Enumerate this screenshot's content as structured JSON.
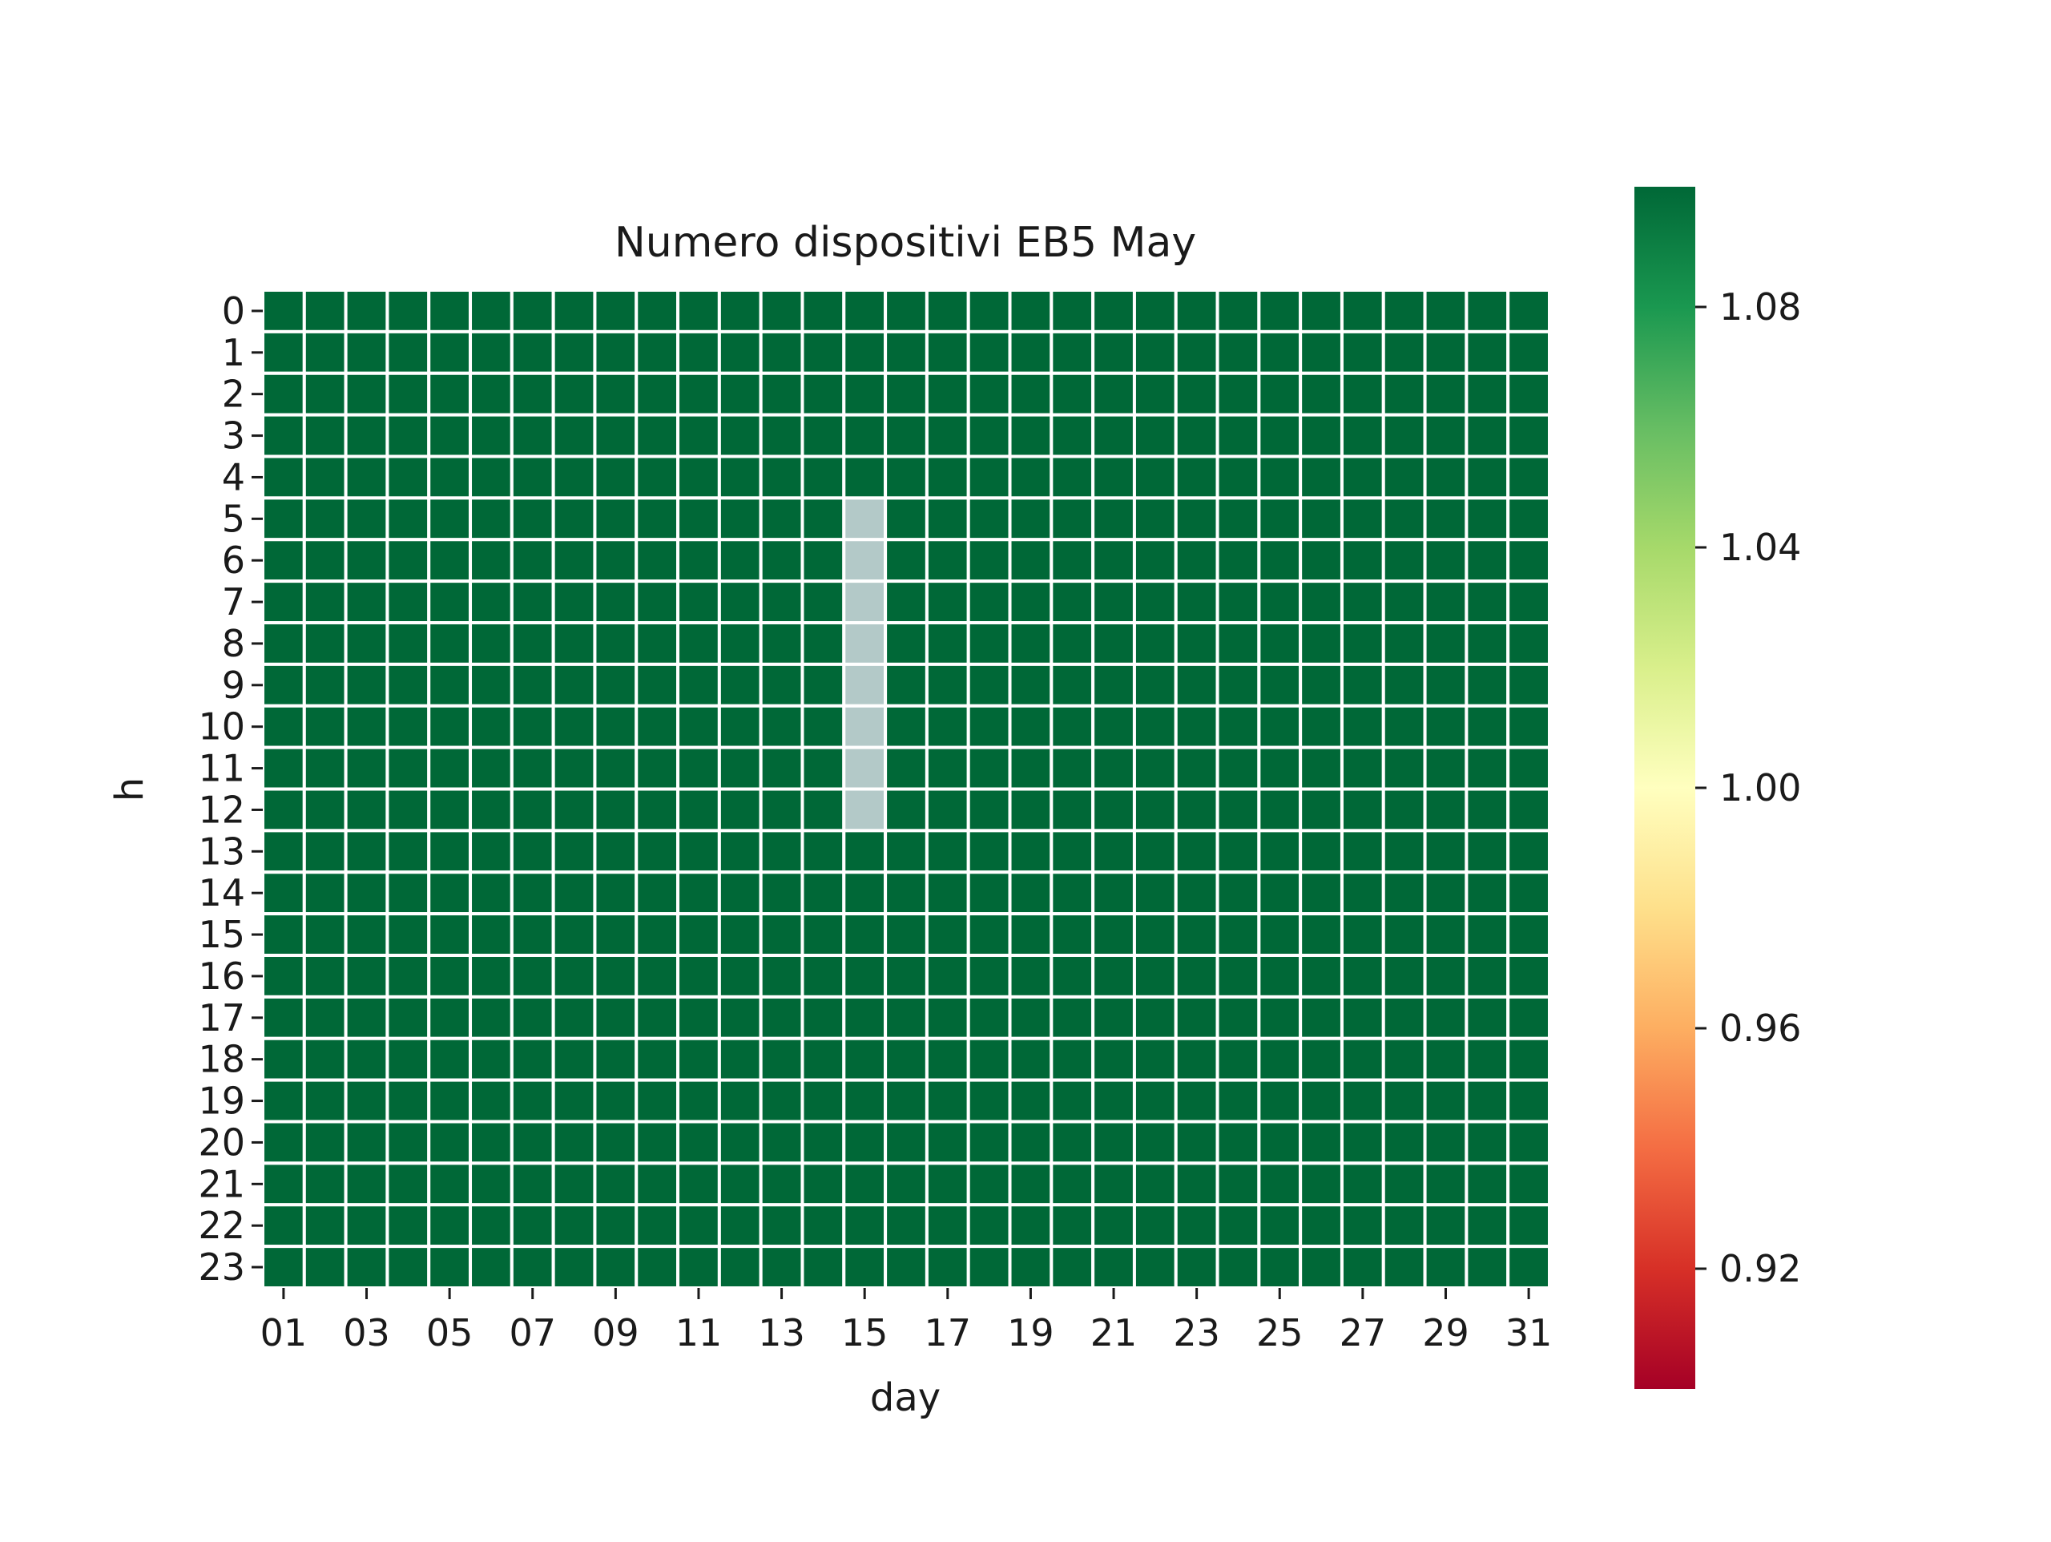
{
  "chart_data": {
    "type": "heatmap",
    "title": "Numero dispositivi EB5 May",
    "xlabel": "day",
    "ylabel": "h",
    "x_categories": [
      "01",
      "02",
      "03",
      "04",
      "05",
      "06",
      "07",
      "08",
      "09",
      "10",
      "11",
      "12",
      "13",
      "14",
      "15",
      "16",
      "17",
      "18",
      "19",
      "20",
      "21",
      "22",
      "23",
      "24",
      "25",
      "26",
      "27",
      "28",
      "29",
      "30",
      "31"
    ],
    "x_tick_labels": [
      "01",
      "03",
      "05",
      "07",
      "09",
      "11",
      "13",
      "15",
      "17",
      "19",
      "21",
      "23",
      "25",
      "27",
      "29",
      "31"
    ],
    "y_categories": [
      "0",
      "1",
      "2",
      "3",
      "4",
      "5",
      "6",
      "7",
      "8",
      "9",
      "10",
      "11",
      "12",
      "13",
      "14",
      "15",
      "16",
      "17",
      "18",
      "19",
      "20",
      "21",
      "22",
      "23"
    ],
    "default_value": 1.1,
    "missing_cells": [
      {
        "day": "15",
        "h": [
          "5",
          "6",
          "7",
          "8",
          "9",
          "10",
          "11",
          "12"
        ]
      }
    ],
    "missing_color": "#b3c9c8",
    "colormap": "RdYlGn",
    "colorbar": {
      "range": [
        0.9,
        1.1
      ],
      "ticks": [
        "0.92",
        "0.96",
        "1.00",
        "1.04",
        "1.08"
      ]
    },
    "cell_border_color": "#ffffff",
    "grid": false,
    "legend": "colorbar-right"
  }
}
